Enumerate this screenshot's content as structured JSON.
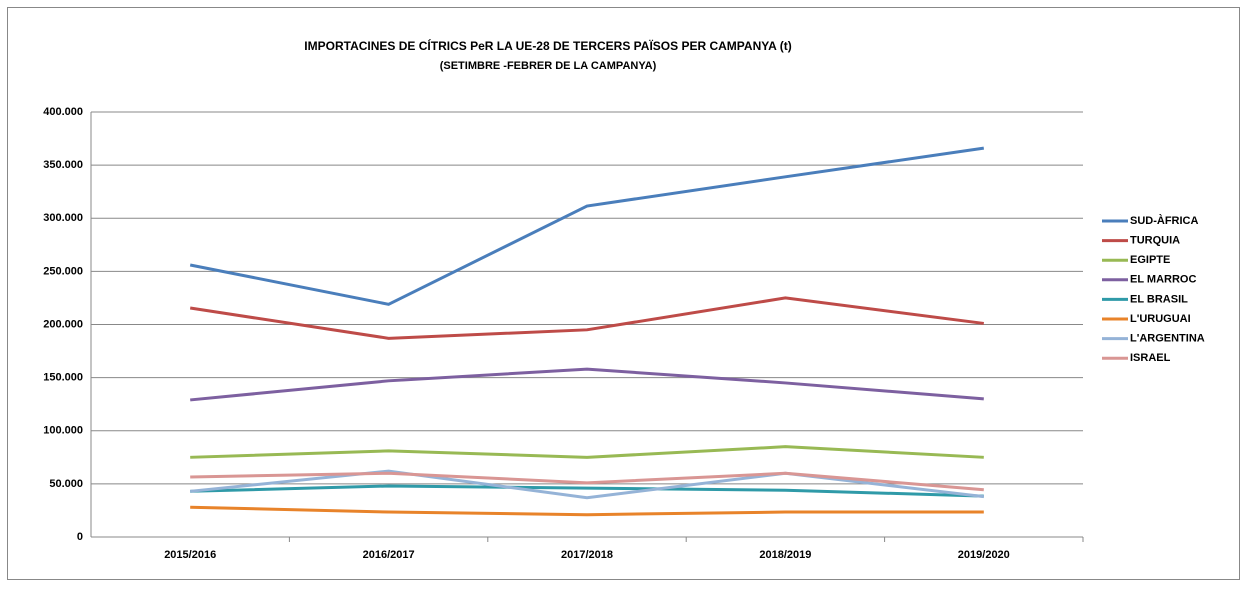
{
  "chart_data": {
    "type": "line",
    "title": "IMPORTACINES DE CÍTRICS PeR LA UE-28 DE TERCERS PAÏSOS PER CAMPANYA  (t)",
    "subtitle": "(SETIMBRE -FEBRER DE LA CAMPANYA)",
    "categories": [
      "2015/2016",
      "2016/2017",
      "2017/2018",
      "2018/2019",
      "2019/2020"
    ],
    "series": [
      {
        "name": "SUD-ÀFRICA",
        "color": "#4a7ebb",
        "values": [
          256000,
          219000,
          311500,
          339000,
          366000
        ]
      },
      {
        "name": "TURQUIA",
        "color": "#be4b48",
        "values": [
          215500,
          187000,
          195000,
          225000,
          201000
        ]
      },
      {
        "name": "EGIPTE",
        "color": "#98b954",
        "values": [
          75000,
          81000,
          75000,
          85000,
          75000
        ]
      },
      {
        "name": "EL MARROC",
        "color": "#7d60a0",
        "values": [
          129000,
          147000,
          158000,
          145000,
          130000
        ]
      },
      {
        "name": "EL BRASIL",
        "color": "#2f9aa8",
        "values": [
          43000,
          48000,
          46000,
          44000,
          38500
        ]
      },
      {
        "name": "L'URUGUAI",
        "color": "#e8832a",
        "values": [
          28000,
          23500,
          21000,
          23500,
          23500
        ]
      },
      {
        "name": "L'ARGENTINA",
        "color": "#95b3d7",
        "values": [
          43000,
          62000,
          37000,
          60000,
          38000
        ]
      },
      {
        "name": "ISRAEL",
        "color": "#d99694",
        "values": [
          56500,
          60000,
          51000,
          60000,
          44500
        ]
      }
    ],
    "ylim": [
      0,
      400000
    ],
    "yticks": [
      0,
      {
        "value": 50000,
        "label": "50.000"
      },
      {
        "value": 100000,
        "label": "100.000"
      },
      {
        "value": 150000,
        "label": "150.000"
      },
      {
        "value": 200000,
        "label": "200.000"
      },
      {
        "value": 250000,
        "label": "250.000"
      },
      {
        "value": 300000,
        "label": "300.000"
      },
      {
        "value": 350000,
        "label": "350.000"
      },
      {
        "value": 400000,
        "label": "400.000"
      }
    ],
    "grid": true,
    "legend": "right"
  }
}
